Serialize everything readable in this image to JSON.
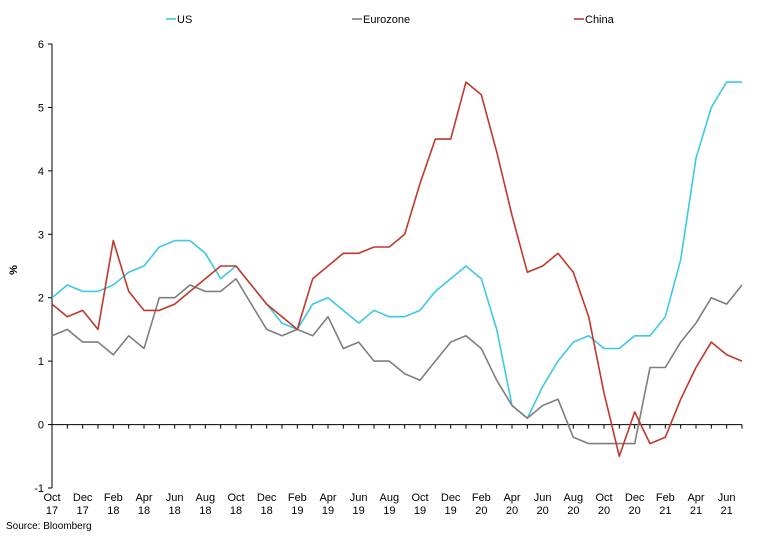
{
  "chart_data": {
    "type": "line",
    "ylabel": "%",
    "ylim": [
      -1,
      6
    ],
    "yticks": [
      -1,
      0,
      1,
      2,
      3,
      4,
      5,
      6
    ],
    "grid": false,
    "legend_position": "top",
    "source": "Source: Bloomberg",
    "x_tick_labels": [
      {
        "index": 0,
        "label": [
          "Oct",
          "17"
        ]
      },
      {
        "index": 2,
        "label": [
          "Dec",
          "17"
        ]
      },
      {
        "index": 4,
        "label": [
          "Feb",
          "18"
        ]
      },
      {
        "index": 6,
        "label": [
          "Apr",
          "18"
        ]
      },
      {
        "index": 8,
        "label": [
          "Jun",
          "18"
        ]
      },
      {
        "index": 10,
        "label": [
          "Aug",
          "18"
        ]
      },
      {
        "index": 12,
        "label": [
          "Oct",
          "18"
        ]
      },
      {
        "index": 14,
        "label": [
          "Dec",
          "18"
        ]
      },
      {
        "index": 16,
        "label": [
          "Feb",
          "19"
        ]
      },
      {
        "index": 18,
        "label": [
          "Apr",
          "19"
        ]
      },
      {
        "index": 20,
        "label": [
          "Jun",
          "19"
        ]
      },
      {
        "index": 22,
        "label": [
          "Aug",
          "19"
        ]
      },
      {
        "index": 24,
        "label": [
          "Oct",
          "19"
        ]
      },
      {
        "index": 26,
        "label": [
          "Dec",
          "19"
        ]
      },
      {
        "index": 28,
        "label": [
          "Feb",
          "20"
        ]
      },
      {
        "index": 30,
        "label": [
          "Apr",
          "20"
        ]
      },
      {
        "index": 32,
        "label": [
          "Jun",
          "20"
        ]
      },
      {
        "index": 34,
        "label": [
          "Aug",
          "20"
        ]
      },
      {
        "index": 36,
        "label": [
          "Oct",
          "20"
        ]
      },
      {
        "index": 38,
        "label": [
          "Dec",
          "20"
        ]
      },
      {
        "index": 40,
        "label": [
          "Feb",
          "21"
        ]
      },
      {
        "index": 42,
        "label": [
          "Apr",
          "21"
        ]
      },
      {
        "index": 44,
        "label": [
          "Jun",
          "21"
        ]
      }
    ],
    "series": [
      {
        "name": "US",
        "color": "#3fc8e4",
        "values": [
          2.0,
          2.2,
          2.1,
          2.1,
          2.2,
          2.4,
          2.5,
          2.8,
          2.9,
          2.9,
          2.7,
          2.3,
          2.5,
          2.2,
          1.9,
          1.6,
          1.5,
          1.9,
          2.0,
          1.8,
          1.6,
          1.8,
          1.7,
          1.7,
          1.8,
          2.1,
          2.3,
          2.5,
          2.3,
          1.5,
          0.3,
          0.1,
          0.6,
          1.0,
          1.3,
          1.4,
          1.2,
          1.2,
          1.4,
          1.4,
          1.7,
          2.6,
          4.2,
          5.0,
          5.4,
          5.4
        ]
      },
      {
        "name": "Eurozone",
        "color": "#7f7f7f",
        "values": [
          1.4,
          1.5,
          1.3,
          1.3,
          1.1,
          1.4,
          1.2,
          2.0,
          2.0,
          2.2,
          2.1,
          2.1,
          2.3,
          1.9,
          1.5,
          1.4,
          1.5,
          1.4,
          1.7,
          1.2,
          1.3,
          1.0,
          1.0,
          0.8,
          0.7,
          1.0,
          1.3,
          1.4,
          1.2,
          0.7,
          0.3,
          0.1,
          0.3,
          0.4,
          -0.2,
          -0.3,
          -0.3,
          -0.3,
          -0.3,
          0.9,
          0.9,
          1.3,
          1.6,
          2.0,
          1.9,
          2.2
        ]
      },
      {
        "name": "China",
        "color": "#c0392b",
        "values": [
          1.9,
          1.7,
          1.8,
          1.5,
          2.9,
          2.1,
          1.8,
          1.8,
          1.9,
          2.1,
          2.3,
          2.5,
          2.5,
          2.2,
          1.9,
          1.7,
          1.5,
          2.3,
          2.5,
          2.7,
          2.7,
          2.8,
          2.8,
          3.0,
          3.8,
          4.5,
          4.5,
          5.4,
          5.2,
          4.3,
          3.3,
          2.4,
          2.5,
          2.7,
          2.4,
          1.7,
          0.5,
          -0.5,
          0.2,
          -0.3,
          -0.2,
          0.4,
          0.9,
          1.3,
          1.1,
          1.0
        ]
      }
    ]
  }
}
